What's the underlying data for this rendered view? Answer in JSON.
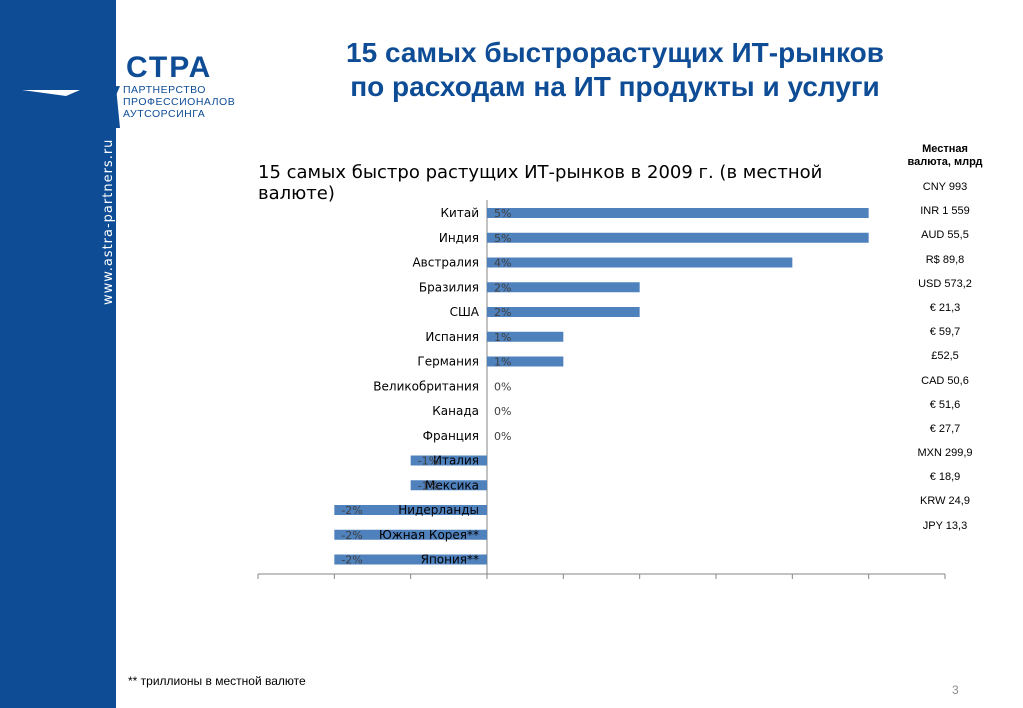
{
  "sidebar": {
    "url": "www.astra-partners.ru"
  },
  "logo": {
    "name": "СТРА",
    "subtitle_lines": [
      "ПАРТНЕРСТВО",
      "ПРОФЕССИОНАЛОВ",
      "АУТСОРСИНГА"
    ],
    "colors": {
      "brand": "#0e4c96"
    }
  },
  "slide": {
    "title_line1": "15 самых быстрорастущих ИТ-рынков",
    "title_line2": "по расходам на ИТ продукты и услуги",
    "footnote": "** триллионы в местной валюте",
    "page_number": "3"
  },
  "currency_table": {
    "header": "Местная валюта, млрд",
    "values": [
      "CNY 993",
      "INR 1 559",
      "AUD 55,5",
      "R$ 89,8",
      "USD 573,2",
      "€ 21,3",
      "€ 59,7",
      "£52,5",
      "CAD 50,6",
      "€ 51,6",
      "€ 27,7",
      "MXN 299,9",
      "€ 18,9",
      "KRW 24,9",
      "JPY 13,3"
    ]
  },
  "chart_data": {
    "type": "bar",
    "orientation": "horizontal",
    "title": "15 самых быстро растущих ИТ-рынков в 2009 г. (в местной валюте)",
    "categories": [
      "Китай",
      "Индия",
      "Австралия",
      "Бразилия",
      "США",
      "Испания",
      "Германия",
      "Великобритания",
      "Канада",
      "Франция",
      "Италия",
      "Мексика",
      "Нидерланды",
      "Южная Корея**",
      "Япония**"
    ],
    "values": [
      5,
      5,
      4,
      2,
      2,
      1,
      1,
      0,
      0,
      0,
      -1,
      -1,
      -2,
      -2,
      -2
    ],
    "data_labels": [
      "5%",
      "5%",
      "4%",
      "2%",
      "2%",
      "1%",
      "1%",
      "0%",
      "0%",
      "0%",
      "-1%",
      "-1%",
      "-2%",
      "-2%",
      "-2%"
    ],
    "xlim": [
      -3,
      6
    ],
    "grid": false,
    "bar_color": "#4f81bd"
  }
}
